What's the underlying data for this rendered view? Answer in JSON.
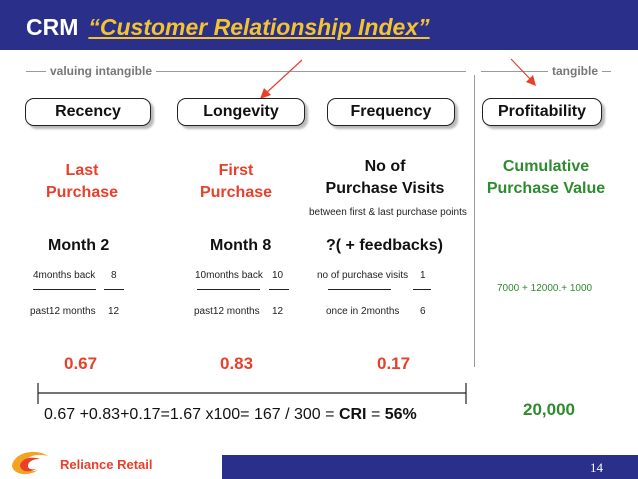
{
  "title": {
    "crm": "CRM",
    "index": "“Customer Relationship Index”"
  },
  "sections": {
    "intangible": "valuing intangible",
    "tangible": "tangible"
  },
  "columns": [
    {
      "pill": "Recency",
      "measure": "Last\nPurchase",
      "month": "Month 2",
      "num_label": "4months back",
      "num": "8",
      "den_label": "past12 months",
      "den": "12",
      "score": "0.67"
    },
    {
      "pill": "Longevity",
      "measure": "First\nPurchase",
      "month": "Month 8",
      "num_label": "10months back",
      "num": "10",
      "den_label": "past12 months",
      "den": "12",
      "score": "0.83"
    },
    {
      "pill": "Frequency",
      "measure": "No of\nPurchase Visits",
      "sub": "between first & last purchase points",
      "month": "?( + feedbacks)",
      "num_label": "no of purchase visits",
      "num": "1",
      "den_label": "once in 2months",
      "den": "6",
      "score": "0.17"
    },
    {
      "pill": "Profitability",
      "measure": "Cumulative\nPurchase Value",
      "calc": "7000 + 12000.+ 1000",
      "total": "20,000"
    }
  ],
  "formula": {
    "main": "0.67 +0.83+0.17=1.67 x100= 167 / 300 = ",
    "cri_label": "CRI",
    "equals": " = ",
    "cri_value": "56%"
  },
  "footer": {
    "brand": "Reliance Retail",
    "page": "14"
  },
  "colors": {
    "header": "#2a2f8a",
    "accent_red": "#e8402a",
    "accent_green": "#2e8b2e",
    "title_yellow": "#f4c430"
  },
  "icons": {
    "logo": "reliance-flame-logo"
  }
}
